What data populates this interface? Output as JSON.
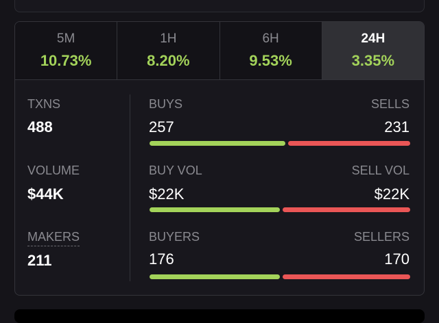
{
  "tabs": [
    {
      "label": "5M",
      "change": "10.73%"
    },
    {
      "label": "1H",
      "change": "8.20%"
    },
    {
      "label": "6H",
      "change": "9.53%"
    },
    {
      "label": "24H",
      "change": "3.35%",
      "active": true
    }
  ],
  "stats": {
    "txns": {
      "label": "TXNS",
      "value": "488",
      "left_label": "BUYS",
      "left_value": "257",
      "right_label": "SELLS",
      "right_value": "231",
      "buy_fraction": 0.527
    },
    "volume": {
      "label": "VOLUME",
      "value": "$44K",
      "left_label": "BUY VOL",
      "left_value": "$22K",
      "right_label": "SELL VOL",
      "right_value": "$22K",
      "buy_fraction": 0.505
    },
    "makers": {
      "label": "MAKERS",
      "value": "211",
      "left_label": "BUYERS",
      "left_value": "176",
      "right_label": "SELLERS",
      "right_value": "170",
      "buy_fraction": 0.505
    }
  },
  "colors": {
    "positive": "#a3d35a",
    "negative": "#ea5656"
  }
}
